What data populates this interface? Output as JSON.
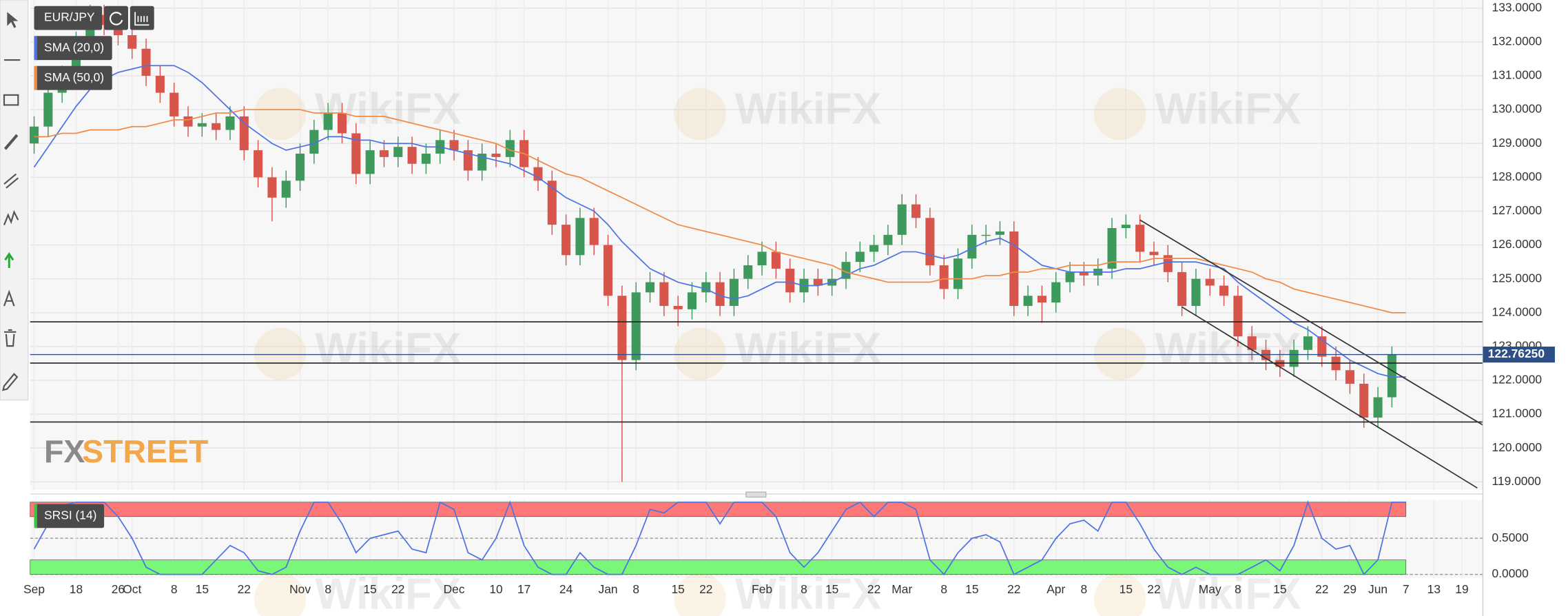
{
  "chart_data": [
    {
      "type": "candlestick",
      "symbol": "EUR/JPY",
      "categories": [
        "Sep",
        null,
        null,
        "18",
        null,
        null,
        "26",
        "Oct",
        null,
        null,
        "8",
        null,
        "15",
        null,
        null,
        "22",
        null,
        null,
        null,
        "Nov",
        null,
        "8",
        null,
        null,
        "15",
        null,
        "22",
        null,
        null,
        null,
        "Dec",
        null,
        null,
        "10",
        null,
        "17",
        null,
        null,
        "24",
        null,
        null,
        "Jan",
        null,
        "8",
        null,
        null,
        "15",
        null,
        "22",
        null,
        null,
        null,
        "Feb",
        null,
        null,
        "8",
        null,
        "15",
        null,
        null,
        "22",
        null,
        "Mar",
        null,
        null,
        "8",
        null,
        "15",
        null,
        null,
        "22",
        null,
        null,
        "Apr",
        null,
        "8",
        null,
        null,
        "15",
        null,
        "22",
        null,
        null,
        null,
        "May",
        null,
        "8",
        null,
        null,
        "15",
        null,
        null,
        "22",
        null,
        "29",
        null,
        "Jun",
        null,
        "7",
        null,
        "13",
        null,
        "19"
      ],
      "open": [
        129.0,
        129.5,
        130.5,
        131.0,
        132.0,
        132.8,
        132.5,
        132.2,
        131.8,
        131.0,
        130.5,
        129.8,
        129.5,
        129.6,
        129.4,
        129.8,
        128.8,
        128.0,
        127.4,
        127.9,
        128.7,
        129.4,
        129.9,
        129.3,
        128.1,
        128.8,
        128.6,
        128.9,
        128.4,
        128.7,
        129.1,
        128.8,
        128.2,
        128.7,
        128.6,
        129.1,
        128.3,
        127.9,
        126.6,
        125.7,
        126.8,
        126.0,
        124.5,
        122.6,
        124.6,
        124.9,
        124.2,
        124.1,
        124.6,
        124.9,
        124.2,
        125.0,
        125.4,
        125.8,
        125.3,
        124.6,
        125.0,
        124.8,
        125.0,
        125.5,
        125.8,
        126.0,
        126.3,
        127.2,
        126.8,
        125.4,
        124.7,
        125.6,
        126.3,
        126.3,
        126.4,
        124.2,
        124.5,
        124.3,
        124.9,
        125.2,
        125.1,
        125.3,
        126.5,
        126.6,
        125.8,
        125.7,
        125.2,
        124.2,
        125.0,
        124.8,
        124.5,
        123.3,
        122.9,
        122.6,
        122.4,
        122.9,
        123.3,
        122.7,
        122.3,
        121.9,
        120.9,
        121.5,
        null,
        null,
        null,
        null,
        null
      ],
      "high": [
        129.8,
        130.8,
        131.3,
        132.3,
        133.1,
        133.1,
        132.8,
        132.5,
        132.1,
        131.3,
        130.8,
        130.1,
        129.9,
        129.9,
        130.1,
        130.1,
        129.1,
        128.3,
        128.2,
        129.0,
        129.7,
        130.2,
        130.2,
        129.6,
        129.1,
        129.1,
        129.2,
        129.2,
        129.0,
        129.4,
        129.4,
        129.1,
        129.0,
        129.0,
        129.4,
        129.4,
        128.6,
        128.2,
        126.9,
        127.1,
        127.1,
        126.3,
        124.8,
        124.9,
        125.2,
        125.2,
        124.5,
        124.9,
        125.2,
        125.2,
        125.3,
        125.7,
        126.1,
        126.1,
        125.6,
        125.3,
        125.3,
        125.3,
        125.8,
        126.1,
        126.3,
        126.6,
        127.5,
        127.5,
        127.1,
        125.7,
        125.9,
        126.6,
        126.6,
        126.7,
        126.7,
        124.8,
        124.8,
        125.2,
        125.5,
        125.5,
        125.6,
        126.8,
        126.9,
        126.9,
        126.1,
        126.0,
        125.5,
        125.3,
        125.3,
        125.1,
        124.8,
        123.6,
        123.2,
        122.9,
        123.2,
        123.6,
        123.6,
        123.0,
        122.6,
        122.2,
        121.8,
        123.0,
        null,
        null,
        null,
        null,
        null
      ],
      "low": [
        128.7,
        129.2,
        130.2,
        130.7,
        131.7,
        132.2,
        131.9,
        131.5,
        130.7,
        130.2,
        129.5,
        129.2,
        129.2,
        129.1,
        129.1,
        128.5,
        127.7,
        126.7,
        127.1,
        127.6,
        128.4,
        129.1,
        129.0,
        127.8,
        127.8,
        128.3,
        128.3,
        128.1,
        128.1,
        128.4,
        128.5,
        127.9,
        127.9,
        128.3,
        128.3,
        128.0,
        127.6,
        126.3,
        125.4,
        125.4,
        125.7,
        124.2,
        119.0,
        122.3,
        124.3,
        123.9,
        123.6,
        123.8,
        124.3,
        123.9,
        123.9,
        124.7,
        125.1,
        125.0,
        124.3,
        124.3,
        124.5,
        124.5,
        124.7,
        125.2,
        125.5,
        125.7,
        126.0,
        126.5,
        125.1,
        124.4,
        124.4,
        125.3,
        126.0,
        126.0,
        123.9,
        123.9,
        123.7,
        124.0,
        124.6,
        124.8,
        124.8,
        125.0,
        126.2,
        125.5,
        125.4,
        124.9,
        123.9,
        123.9,
        124.5,
        124.2,
        123.0,
        122.6,
        122.3,
        122.1,
        122.1,
        122.6,
        122.4,
        122.0,
        121.6,
        120.6,
        120.6,
        121.2,
        null,
        null,
        null,
        null,
        null
      ],
      "close": [
        129.5,
        130.5,
        131.0,
        132.0,
        132.8,
        132.5,
        132.2,
        131.8,
        131.0,
        130.5,
        129.8,
        129.5,
        129.6,
        129.4,
        129.8,
        128.8,
        128.0,
        127.4,
        127.9,
        128.7,
        129.4,
        129.9,
        129.3,
        128.1,
        128.8,
        128.6,
        128.9,
        128.4,
        128.7,
        129.1,
        128.8,
        128.2,
        128.7,
        128.6,
        129.1,
        128.3,
        127.9,
        126.6,
        125.7,
        126.8,
        126.0,
        124.5,
        122.6,
        124.6,
        124.9,
        124.2,
        124.1,
        124.6,
        124.9,
        124.2,
        125.0,
        125.4,
        125.8,
        125.3,
        124.6,
        125.0,
        124.8,
        125.0,
        125.5,
        125.8,
        126.0,
        126.3,
        127.2,
        126.8,
        125.4,
        124.7,
        125.6,
        126.3,
        126.3,
        126.4,
        124.2,
        124.5,
        124.3,
        124.9,
        125.2,
        125.1,
        125.3,
        126.5,
        126.6,
        125.8,
        125.7,
        125.2,
        124.2,
        125.0,
        124.8,
        124.5,
        123.3,
        122.9,
        122.6,
        122.4,
        122.9,
        123.3,
        122.7,
        122.3,
        121.9,
        120.9,
        121.5,
        122.76,
        null,
        null,
        null,
        null,
        null
      ],
      "up_color": "#3d9a5c",
      "down_color": "#d8554c",
      "series": [
        {
          "name": "SMA (20,0)",
          "color": "#4f72e3",
          "values": [
            128.3,
            128.9,
            129.5,
            130.1,
            130.6,
            130.9,
            131.1,
            131.2,
            131.3,
            131.3,
            131.3,
            131.1,
            130.8,
            130.4,
            130.0,
            129.6,
            129.3,
            129.0,
            128.8,
            128.9,
            129.0,
            129.2,
            129.2,
            129.1,
            129.1,
            129.0,
            129.0,
            129.0,
            128.9,
            128.9,
            128.8,
            128.7,
            128.6,
            128.5,
            128.4,
            128.2,
            128.0,
            127.7,
            127.4,
            127.2,
            127.0,
            126.6,
            126.1,
            125.7,
            125.3,
            125.1,
            124.9,
            124.8,
            124.7,
            124.5,
            124.4,
            124.5,
            124.7,
            124.9,
            124.9,
            124.8,
            124.8,
            124.9,
            125.1,
            125.3,
            125.4,
            125.6,
            125.8,
            125.8,
            125.7,
            125.6,
            125.7,
            125.9,
            126.1,
            126.2,
            126.0,
            125.7,
            125.4,
            125.3,
            125.2,
            125.2,
            125.2,
            125.2,
            125.3,
            125.3,
            125.4,
            125.5,
            125.5,
            125.5,
            125.4,
            125.3,
            124.9,
            124.6,
            124.3,
            124.0,
            123.7,
            123.5,
            123.2,
            122.9,
            122.6,
            122.4,
            122.2,
            122.1,
            122.1,
            null,
            null,
            null,
            null
          ]
        },
        {
          "name": "SMA (50,0)",
          "color": "#f08a46",
          "values": [
            129.2,
            129.2,
            129.3,
            129.3,
            129.4,
            129.4,
            129.4,
            129.5,
            129.5,
            129.6,
            129.7,
            129.7,
            129.8,
            129.9,
            129.9,
            130.0,
            130.0,
            130.0,
            130.0,
            130.0,
            129.9,
            129.9,
            129.9,
            129.8,
            129.8,
            129.8,
            129.7,
            129.6,
            129.5,
            129.4,
            129.3,
            129.2,
            129.1,
            129.0,
            128.8,
            128.7,
            128.5,
            128.3,
            128.1,
            128.0,
            127.8,
            127.6,
            127.4,
            127.2,
            127.0,
            126.8,
            126.6,
            126.5,
            126.4,
            126.3,
            126.2,
            126.1,
            126.0,
            125.8,
            125.7,
            125.6,
            125.5,
            125.4,
            125.2,
            125.1,
            125.0,
            124.9,
            124.9,
            124.9,
            124.9,
            125.0,
            125.0,
            125.0,
            125.1,
            125.1,
            125.2,
            125.2,
            125.3,
            125.3,
            125.4,
            125.4,
            125.4,
            125.5,
            125.5,
            125.5,
            125.6,
            125.6,
            125.6,
            125.6,
            125.5,
            125.4,
            125.3,
            125.2,
            125.0,
            124.9,
            124.7,
            124.6,
            124.5,
            124.4,
            124.3,
            124.2,
            124.1,
            124.0,
            124.0,
            null,
            null,
            null,
            null
          ]
        }
      ],
      "ylim": [
        118.76,
        133.24
      ],
      "yticks": [
        {
          "value": 133,
          "label": "133.0000"
        },
        {
          "value": 132,
          "label": "132.0000"
        },
        {
          "value": 131,
          "label": "131.0000"
        },
        {
          "value": 130,
          "label": "130.0000"
        },
        {
          "value": 129,
          "label": "129.0000"
        },
        {
          "value": 128,
          "label": "128.0000"
        },
        {
          "value": 127,
          "label": "127.0000"
        },
        {
          "value": 126,
          "label": "126.0000"
        },
        {
          "value": 125,
          "label": "125.0000"
        },
        {
          "value": 124,
          "label": "124.0000"
        },
        {
          "value": 123,
          "label": "123.0000"
        },
        {
          "value": 122,
          "label": "122.0000"
        },
        {
          "value": 121,
          "label": "121.0000"
        },
        {
          "value": 120,
          "label": "120.0000"
        },
        {
          "value": 119,
          "label": "119.0000"
        }
      ],
      "last_price": {
        "value": 122.7625,
        "label": "122.76250"
      },
      "last_price_color": "#2b4f86",
      "hlines": [
        123.73,
        122.51,
        120.77
      ],
      "trendlines": [
        {
          "x": [
            79,
            103.5
          ],
          "y": [
            126.74,
            120.68
          ]
        },
        {
          "x": [
            82,
            103.1
          ],
          "y": [
            124.17,
            118.82
          ]
        }
      ],
      "grid": true,
      "watermark": "WikiFX",
      "logo": [
        "FX",
        "STREET"
      ]
    },
    {
      "type": "line",
      "series": [
        {
          "name": "SRSI (14)",
          "color": "#4f72e3",
          "values": [
            0.35,
            0.7,
            0.95,
            1,
            1,
            1,
            0.8,
            0.5,
            0.1,
            0,
            0,
            0,
            0,
            0.2,
            0.4,
            0.3,
            0.05,
            0,
            0.1,
            0.6,
            1,
            1,
            0.7,
            0.3,
            0.5,
            0.55,
            0.6,
            0.35,
            0.3,
            1,
            0.9,
            0.3,
            0.2,
            0.5,
            1,
            0.4,
            0.1,
            0,
            0,
            0.3,
            0.1,
            0,
            0,
            0.4,
            0.9,
            0.85,
            1,
            1,
            1,
            0.7,
            1,
            1,
            1,
            0.8,
            0.3,
            0.1,
            0.3,
            0.6,
            0.9,
            1,
            0.8,
            1,
            1,
            0.9,
            0.2,
            0,
            0.3,
            0.5,
            0.55,
            0.45,
            0,
            0.1,
            0.2,
            0.5,
            0.7,
            0.75,
            0.6,
            1,
            1,
            0.7,
            0.35,
            0.1,
            0,
            0.1,
            0,
            0,
            0,
            0.1,
            0.2,
            0.05,
            0.4,
            1,
            0.5,
            0.35,
            0.4,
            0,
            0.2,
            1,
            1,
            null,
            null,
            null,
            null
          ]
        }
      ],
      "bands": [
        {
          "range": [
            0.8,
            1
          ],
          "color": "#ff7878"
        },
        {
          "range": [
            0,
            0.2
          ],
          "color": "#78f778"
        }
      ],
      "ylim": [
        -0.05,
        1.03
      ],
      "yticks": [
        {
          "value": 0.5,
          "label": "0.5000"
        },
        {
          "value": 0,
          "label": "0.0000"
        }
      ]
    }
  ]
}
